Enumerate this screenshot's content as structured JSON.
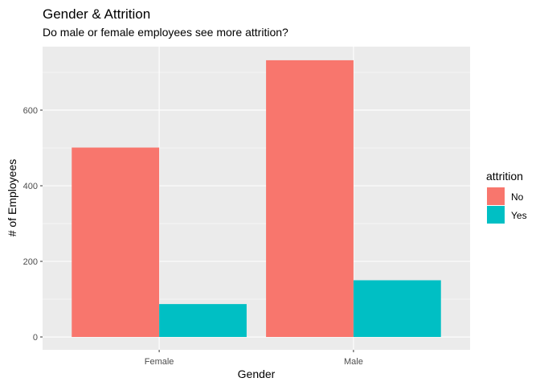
{
  "chart_data": {
    "type": "bar",
    "title": "Gender & Attrition",
    "subtitle": "Do male or female employees see more attrition?",
    "xlabel": "Gender",
    "ylabel": "# of Employees",
    "categories": [
      "Female",
      "Male"
    ],
    "series": [
      {
        "name": "No",
        "values": [
          501,
          732
        ],
        "color": "#F8766D"
      },
      {
        "name": "Yes",
        "values": [
          87,
          150
        ],
        "color": "#00BFC4"
      }
    ],
    "ylim": [
      -34,
      768
    ],
    "yticks": [
      0,
      200,
      400,
      600
    ],
    "ytick_labels": [
      "0",
      "200",
      "400",
      "600"
    ],
    "legend_title": "attrition",
    "legend_position": "right",
    "grid": true,
    "panel_background": "#EBEBEB",
    "grid_color": "#FFFFFF"
  }
}
